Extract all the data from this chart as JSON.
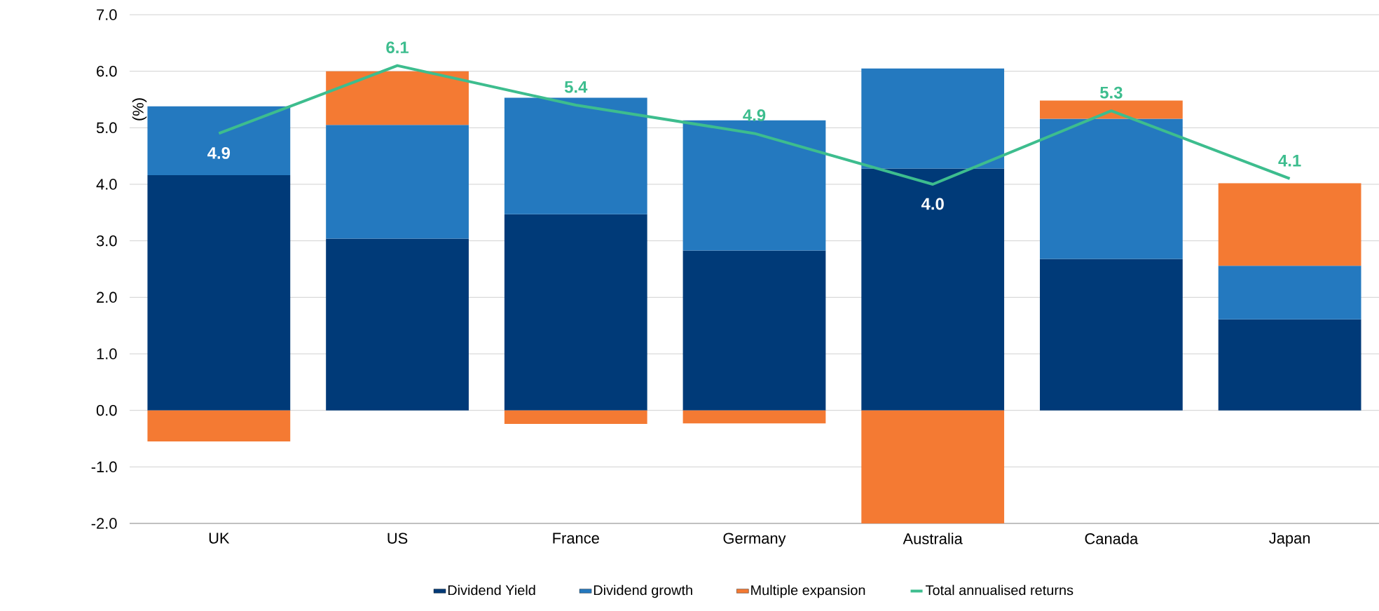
{
  "chart_data": {
    "type": "bar",
    "stacked": true,
    "ylabel": "(%)",
    "categories": [
      "UK",
      "US",
      "France",
      "Germany",
      "Australia",
      "Canada",
      "Japan"
    ],
    "series": [
      {
        "name": "Dividend Yield",
        "color": "#003a78",
        "values": [
          4.16,
          3.04,
          3.47,
          2.83,
          4.28,
          2.68,
          1.61
        ]
      },
      {
        "name": "Dividend growth",
        "color": "#2479bf",
        "values": [
          1.22,
          2.01,
          2.06,
          2.3,
          1.77,
          2.48,
          0.95
        ]
      },
      {
        "name": "Multiple expansion",
        "color": "#f47a33",
        "values": [
          -0.55,
          0.95,
          -0.24,
          -0.23,
          -2.0,
          0.32,
          1.46
        ]
      },
      {
        "name": "Total annualised returns",
        "type": "line",
        "color": "#3dbd8e",
        "values": [
          4.9,
          6.1,
          5.4,
          4.9,
          4.0,
          5.3,
          4.1
        ],
        "value_labels": [
          "4.9",
          "6.1",
          "5.4",
          "4.9",
          "4.0",
          "5.3",
          "4.1"
        ]
      }
    ],
    "ylim": [
      -2,
      7
    ],
    "yticks": [
      {
        "value": -2,
        "label": "-2.0"
      },
      {
        "value": -1,
        "label": "-1.0"
      },
      {
        "value": 0,
        "label": "0.0"
      },
      {
        "value": 1,
        "label": "1.0"
      },
      {
        "value": 2,
        "label": "2.0"
      },
      {
        "value": 3,
        "label": "3.0"
      },
      {
        "value": 4,
        "label": "4.0"
      },
      {
        "value": 5,
        "label": "5.0"
      },
      {
        "value": 6,
        "label": "6.0"
      },
      {
        "value": 7,
        "label": "7.0"
      }
    ],
    "grid": "y",
    "legend": "bottom",
    "marker": "none"
  }
}
